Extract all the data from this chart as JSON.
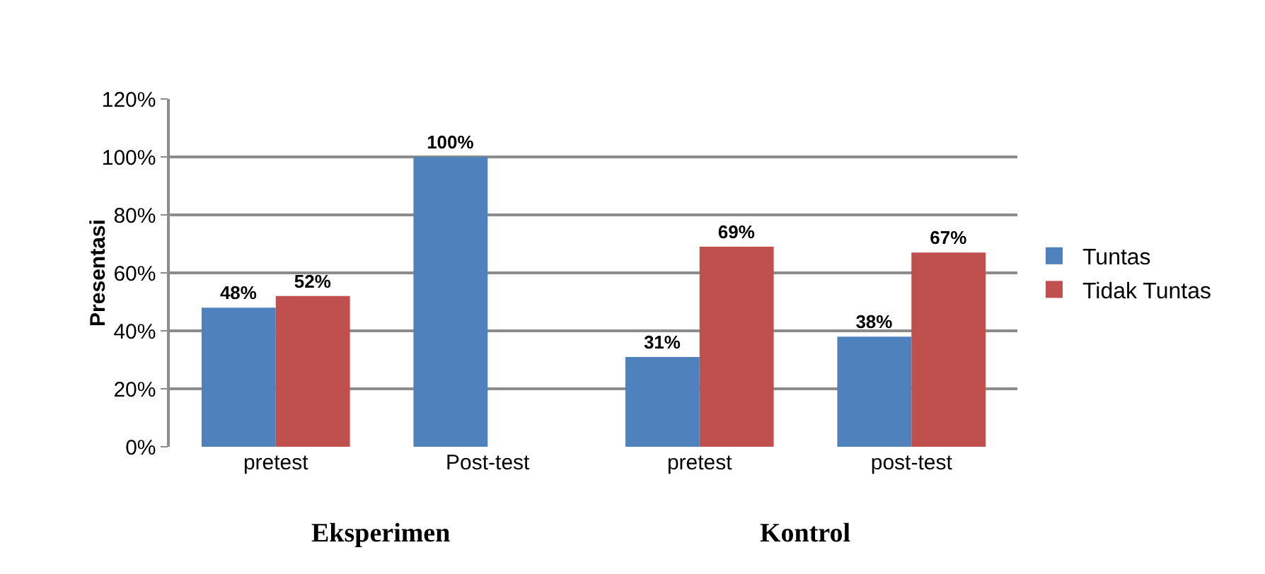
{
  "chart_data": {
    "type": "bar",
    "ylabel": "Presentasi",
    "categories": [
      "pretest",
      "Post-test",
      "pretest",
      "post-test"
    ],
    "series": [
      {
        "name": "Tuntas",
        "color": "#4f81bd",
        "values": [
          48,
          100,
          31,
          38
        ],
        "value_labels": [
          "48%",
          "100%",
          "31%",
          "38%"
        ]
      },
      {
        "name": "Tidak Tuntas",
        "color": "#c0504d",
        "values": [
          52,
          null,
          69,
          67
        ],
        "value_labels": [
          "52%",
          null,
          "69%",
          "67%"
        ]
      }
    ],
    "ylim": [
      0,
      120
    ],
    "yticks": [
      {
        "value": 0,
        "label": "0%"
      },
      {
        "value": 20,
        "label": "20%"
      },
      {
        "value": 40,
        "label": "40%"
      },
      {
        "value": 60,
        "label": "60%"
      },
      {
        "value": 80,
        "label": "80%"
      },
      {
        "value": 100,
        "label": "100%"
      },
      {
        "value": 120,
        "label": "120%"
      }
    ],
    "grid": "y",
    "legend": "right",
    "annotations": [
      "Eksperimen",
      "Kontrol"
    ]
  }
}
